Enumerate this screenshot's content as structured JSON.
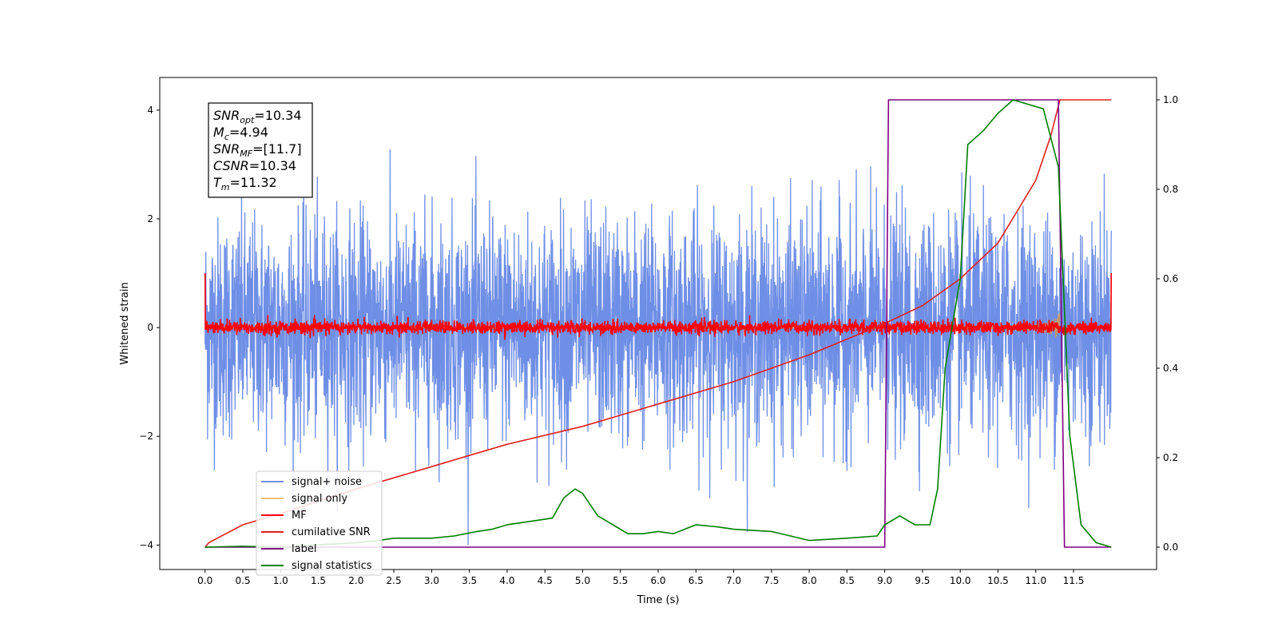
{
  "chart_data": {
    "type": "line",
    "title": "",
    "xlabel": "Time (s)",
    "ylabel": "Whitened strain",
    "xlim": [
      -0.6,
      12.6
    ],
    "ylim": [
      -4.45,
      4.6
    ],
    "ylim_right": [
      -0.05,
      1.05
    ],
    "x_ticks": [
      "0.0",
      "0.5",
      "1.0",
      "1.5",
      "2.0",
      "2.5",
      "3.0",
      "3.5",
      "4.0",
      "4.5",
      "5.0",
      "5.5",
      "6.0",
      "6.5",
      "7.0",
      "7.5",
      "8.0",
      "8.5",
      "9.0",
      "9.5",
      "10.0",
      "10.5",
      "11.0",
      "11.5"
    ],
    "y_ticks_left": [
      "4",
      "2",
      "0",
      "−2",
      "−4"
    ],
    "y_ticks_right": [
      "1.0",
      "0.8",
      "0.6",
      "0.4",
      "0.2",
      "0.0"
    ],
    "grid": false,
    "legend_position": "lower-left",
    "annotation": [
      {
        "var": "SNR",
        "sub": "opt",
        "value": "=10.34"
      },
      {
        "var": "M",
        "sub": "c",
        "value": "=4.94"
      },
      {
        "var": "SNR",
        "sub": "MF",
        "value": "=[11.7]"
      },
      {
        "var": "CSNR",
        "sub": "",
        "value": "=10.34"
      },
      {
        "var": "T",
        "sub": "m",
        "value": "=11.32"
      }
    ],
    "series": [
      {
        "name": "signal+ noise",
        "color": "#6f8fe6",
        "axis": "left",
        "kind": "noise",
        "x_range": [
          0.0,
          12.0
        ],
        "std": 1.0,
        "note_range": [
          -4.0,
          4.2
        ]
      },
      {
        "name": "signal only",
        "color": "#f5c07a",
        "axis": "left",
        "kind": "chirp",
        "x_range": [
          0.0,
          11.32
        ],
        "envelope_max": 1.0
      },
      {
        "name": "MF",
        "color": "#ff0000",
        "axis": "left",
        "kind": "noise",
        "x_range": [
          0.0,
          12.0
        ],
        "std": 0.06,
        "end_values": [
          1.0,
          1.0
        ]
      },
      {
        "name": "cumilative SNR",
        "color": "#e02020",
        "axis": "right",
        "x": [
          0.0,
          0.05,
          0.5,
          1.0,
          2.0,
          3.0,
          4.0,
          5.0,
          6.0,
          7.0,
          8.0,
          9.0,
          9.5,
          10.0,
          10.5,
          11.0,
          11.2,
          11.32,
          12.0
        ],
        "y": [
          0.0,
          0.01,
          0.05,
          0.075,
          0.13,
          0.18,
          0.23,
          0.27,
          0.32,
          0.37,
          0.43,
          0.5,
          0.54,
          0.6,
          0.68,
          0.82,
          0.92,
          1.0,
          1.0
        ]
      },
      {
        "name": "label",
        "color": "#800080",
        "axis": "right",
        "x": [
          0.0,
          9.0,
          9.05,
          11.3,
          11.38,
          12.0
        ],
        "y": [
          0.0,
          0.0,
          1.0,
          1.0,
          0.0,
          0.0
        ]
      },
      {
        "name": "signal statistics",
        "color": "#008000",
        "axis": "right",
        "x": [
          0.0,
          0.5,
          1.0,
          1.5,
          2.0,
          2.3,
          2.5,
          3.0,
          3.3,
          3.6,
          3.8,
          4.0,
          4.2,
          4.4,
          4.6,
          4.75,
          4.9,
          5.0,
          5.2,
          5.4,
          5.6,
          5.8,
          6.0,
          6.2,
          6.5,
          6.8,
          7.0,
          7.5,
          8.0,
          8.5,
          8.9,
          9.0,
          9.2,
          9.4,
          9.6,
          9.7,
          9.8,
          9.9,
          10.0,
          10.1,
          10.3,
          10.5,
          10.7,
          10.9,
          11.1,
          11.3,
          11.45,
          11.6,
          11.8,
          12.0
        ],
        "y": [
          0.0,
          0.002,
          0.0,
          0.005,
          0.01,
          0.015,
          0.02,
          0.02,
          0.025,
          0.035,
          0.04,
          0.05,
          0.055,
          0.06,
          0.065,
          0.11,
          0.13,
          0.12,
          0.07,
          0.05,
          0.03,
          0.03,
          0.035,
          0.03,
          0.05,
          0.045,
          0.04,
          0.035,
          0.015,
          0.02,
          0.025,
          0.05,
          0.07,
          0.05,
          0.05,
          0.13,
          0.4,
          0.5,
          0.6,
          0.9,
          0.93,
          0.97,
          1.0,
          0.99,
          0.98,
          0.85,
          0.25,
          0.05,
          0.01,
          0.0
        ]
      }
    ]
  }
}
